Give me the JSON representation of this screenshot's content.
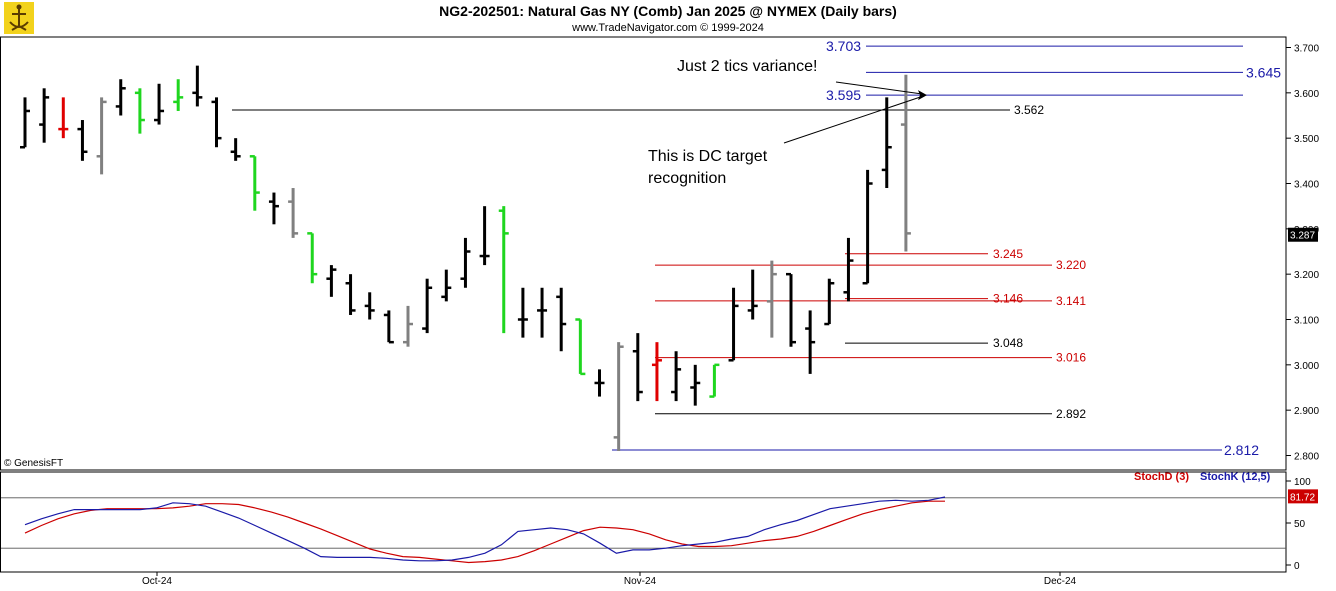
{
  "header": {
    "title": "NG2-202501:  Natural Gas NY (Comb) Jan 2025 @ NYMEX  (Daily bars)",
    "subtitle": "www.TradeNavigator.com © 1999-2024"
  },
  "copyright": "© GenesisFT",
  "annotations": {
    "note1": "Just 2 tics variance!",
    "note2_line1": "This is DC target",
    "note2_line2": "recognition"
  },
  "chart_data": [
    {
      "type": "ohlc",
      "xlabel": "",
      "ylabel": "",
      "x_ticks": [
        "Oct-24",
        "Nov-24",
        "Dec-24"
      ],
      "ylim": [
        2.78,
        3.72
      ],
      "y_ticks": [
        "2.800",
        "2.900",
        "3.000",
        "3.100",
        "3.200",
        "3.300",
        "3.400",
        "3.500",
        "3.600",
        "3.700"
      ],
      "last_price": "3.287",
      "colors": {
        "normal": "#000000",
        "inside": "#808080",
        "up_key": "#1fd61f",
        "down_key": "#e00000"
      },
      "bars": [
        {
          "o": 3.48,
          "h": 3.59,
          "l": 3.48,
          "c": 3.56,
          "k": "n"
        },
        {
          "o": 3.53,
          "h": 3.61,
          "l": 3.49,
          "c": 3.59,
          "k": "n"
        },
        {
          "o": 3.52,
          "h": 3.59,
          "l": 3.5,
          "c": 3.52,
          "k": "r"
        },
        {
          "o": 3.52,
          "h": 3.54,
          "l": 3.45,
          "c": 3.47,
          "k": "n"
        },
        {
          "o": 3.46,
          "h": 3.59,
          "l": 3.42,
          "c": 3.58,
          "k": "i"
        },
        {
          "o": 3.57,
          "h": 3.63,
          "l": 3.55,
          "c": 3.61,
          "k": "n"
        },
        {
          "o": 3.6,
          "h": 3.61,
          "l": 3.51,
          "c": 3.54,
          "k": "g"
        },
        {
          "o": 3.54,
          "h": 3.62,
          "l": 3.53,
          "c": 3.56,
          "k": "n"
        },
        {
          "o": 3.58,
          "h": 3.63,
          "l": 3.56,
          "c": 3.59,
          "k": "g"
        },
        {
          "o": 3.6,
          "h": 3.66,
          "l": 3.57,
          "c": 3.59,
          "k": "n"
        },
        {
          "o": 3.58,
          "h": 3.59,
          "l": 3.48,
          "c": 3.5,
          "k": "n"
        },
        {
          "o": 3.47,
          "h": 3.5,
          "l": 3.45,
          "c": 3.46,
          "k": "n"
        },
        {
          "o": 3.46,
          "h": 3.46,
          "l": 3.34,
          "c": 3.38,
          "k": "g"
        },
        {
          "o": 3.36,
          "h": 3.38,
          "l": 3.31,
          "c": 3.35,
          "k": "n"
        },
        {
          "o": 3.36,
          "h": 3.39,
          "l": 3.28,
          "c": 3.29,
          "k": "i"
        },
        {
          "o": 3.29,
          "h": 3.29,
          "l": 3.18,
          "c": 3.2,
          "k": "g"
        },
        {
          "o": 3.19,
          "h": 3.22,
          "l": 3.15,
          "c": 3.21,
          "k": "n"
        },
        {
          "o": 3.18,
          "h": 3.2,
          "l": 3.11,
          "c": 3.12,
          "k": "n"
        },
        {
          "o": 3.13,
          "h": 3.16,
          "l": 3.1,
          "c": 3.12,
          "k": "n"
        },
        {
          "o": 3.11,
          "h": 3.12,
          "l": 3.05,
          "c": 3.05,
          "k": "n"
        },
        {
          "o": 3.05,
          "h": 3.13,
          "l": 3.04,
          "c": 3.09,
          "k": "i"
        },
        {
          "o": 3.08,
          "h": 3.19,
          "l": 3.07,
          "c": 3.17,
          "k": "n"
        },
        {
          "o": 3.15,
          "h": 3.21,
          "l": 3.14,
          "c": 3.17,
          "k": "n"
        },
        {
          "o": 3.19,
          "h": 3.28,
          "l": 3.17,
          "c": 3.25,
          "k": "n"
        },
        {
          "o": 3.24,
          "h": 3.35,
          "l": 3.22,
          "c": 3.24,
          "k": "n"
        },
        {
          "o": 3.34,
          "h": 3.35,
          "l": 3.07,
          "c": 3.29,
          "k": "g"
        },
        {
          "o": 3.1,
          "h": 3.17,
          "l": 3.06,
          "c": 3.1,
          "k": "n"
        },
        {
          "o": 3.12,
          "h": 3.17,
          "l": 3.06,
          "c": 3.12,
          "k": "n"
        },
        {
          "o": 3.15,
          "h": 3.17,
          "l": 3.03,
          "c": 3.09,
          "k": "n"
        },
        {
          "o": 3.1,
          "h": 3.1,
          "l": 2.98,
          "c": 2.98,
          "k": "g"
        },
        {
          "o": 2.96,
          "h": 2.99,
          "l": 2.93,
          "c": 2.96,
          "k": "n"
        },
        {
          "o": 2.84,
          "h": 3.05,
          "l": 2.81,
          "c": 3.04,
          "k": "i"
        },
        {
          "o": 3.03,
          "h": 3.07,
          "l": 2.92,
          "c": 2.94,
          "k": "n"
        },
        {
          "o": 3.0,
          "h": 3.05,
          "l": 2.92,
          "c": 3.01,
          "k": "r"
        },
        {
          "o": 2.94,
          "h": 3.03,
          "l": 2.92,
          "c": 2.99,
          "k": "n"
        },
        {
          "o": 2.95,
          "h": 3.0,
          "l": 2.91,
          "c": 2.96,
          "k": "n"
        },
        {
          "o": 2.93,
          "h": 3.0,
          "l": 2.93,
          "c": 3.0,
          "k": "g"
        },
        {
          "o": 3.01,
          "h": 3.17,
          "l": 3.01,
          "c": 3.13,
          "k": "n"
        },
        {
          "o": 3.12,
          "h": 3.21,
          "l": 3.1,
          "c": 3.13,
          "k": "n"
        },
        {
          "o": 3.14,
          "h": 3.23,
          "l": 3.06,
          "c": 3.2,
          "k": "i"
        },
        {
          "o": 3.2,
          "h": 3.2,
          "l": 3.04,
          "c": 3.05,
          "k": "n"
        },
        {
          "o": 3.08,
          "h": 3.12,
          "l": 2.98,
          "c": 3.05,
          "k": "n"
        },
        {
          "o": 3.09,
          "h": 3.19,
          "l": 3.09,
          "c": 3.18,
          "k": "n"
        },
        {
          "o": 3.16,
          "h": 3.28,
          "l": 3.14,
          "c": 3.23,
          "k": "n"
        },
        {
          "o": 3.18,
          "h": 3.43,
          "l": 3.18,
          "c": 3.4,
          "k": "n"
        },
        {
          "o": 3.43,
          "h": 3.59,
          "l": 3.39,
          "c": 3.48,
          "k": "n"
        },
        {
          "o": 3.53,
          "h": 3.64,
          "l": 3.25,
          "c": 3.29,
          "k": "i"
        }
      ],
      "levels": [
        {
          "value": 3.703,
          "label": "3.703",
          "color": "#1a1aa8",
          "label_side": "left",
          "big": true
        },
        {
          "value": 3.645,
          "label": "3.645",
          "color": "#1a1aa8",
          "label_side": "right",
          "big": true
        },
        {
          "value": 3.595,
          "label": "3.595",
          "color": "#1a1aa8",
          "label_side": "left",
          "big": true
        },
        {
          "value": 3.562,
          "label": "3.562",
          "color": "#000000",
          "label_side": "right",
          "big": false
        },
        {
          "value": 3.245,
          "label": "3.245",
          "color": "#cc0000",
          "label_side": "right",
          "big": false
        },
        {
          "value": 3.22,
          "label": "3.220",
          "color": "#cc0000",
          "label_side": "right",
          "big": false
        },
        {
          "value": 3.146,
          "label": "3.146",
          "color": "#cc0000",
          "label_side": "right",
          "big": false
        },
        {
          "value": 3.141,
          "label": "3.141",
          "color": "#cc0000",
          "label_side": "right",
          "big": false
        },
        {
          "value": 3.048,
          "label": "3.048",
          "color": "#000000",
          "label_side": "right",
          "big": false
        },
        {
          "value": 3.016,
          "label": "3.016",
          "color": "#cc0000",
          "label_side": "right",
          "big": false
        },
        {
          "value": 2.892,
          "label": "2.892",
          "color": "#000000",
          "label_side": "right",
          "big": false
        },
        {
          "value": 2.812,
          "label": "2.812",
          "color": "#1a1aa8",
          "label_side": "right",
          "big": true
        }
      ]
    },
    {
      "type": "line",
      "ylim": [
        0,
        100
      ],
      "y_ticks": [
        "100",
        "50",
        "0"
      ],
      "last_value": "81.72",
      "series": [
        {
          "name": "StochD (3)",
          "color": "#cc0000",
          "values": [
            38,
            47,
            55,
            61,
            65,
            67,
            67,
            67,
            67,
            68,
            70,
            73,
            73,
            72,
            68,
            63,
            57,
            50,
            43,
            35,
            27,
            19,
            14,
            10,
            9,
            7,
            5,
            3,
            4,
            6,
            10,
            17,
            25,
            33,
            41,
            45,
            44,
            42,
            37,
            30,
            25,
            22,
            22,
            23,
            26,
            29,
            31,
            34,
            40,
            47,
            54,
            61,
            66,
            70,
            74,
            76,
            76
          ]
        },
        {
          "name": "StochK (12,5)",
          "color": "#1a1aa8",
          "values": [
            48,
            55,
            61,
            66,
            66,
            66,
            66,
            66,
            68,
            74,
            73,
            70,
            63,
            56,
            47,
            38,
            29,
            20,
            10,
            9,
            9,
            9,
            8,
            6,
            5,
            5,
            6,
            9,
            14,
            24,
            40,
            42,
            44,
            42,
            37,
            26,
            14,
            18,
            18,
            20,
            23,
            25,
            27,
            31,
            34,
            42,
            48,
            53,
            60,
            67,
            70,
            73,
            76,
            77,
            76,
            77,
            81
          ]
        }
      ]
    }
  ]
}
